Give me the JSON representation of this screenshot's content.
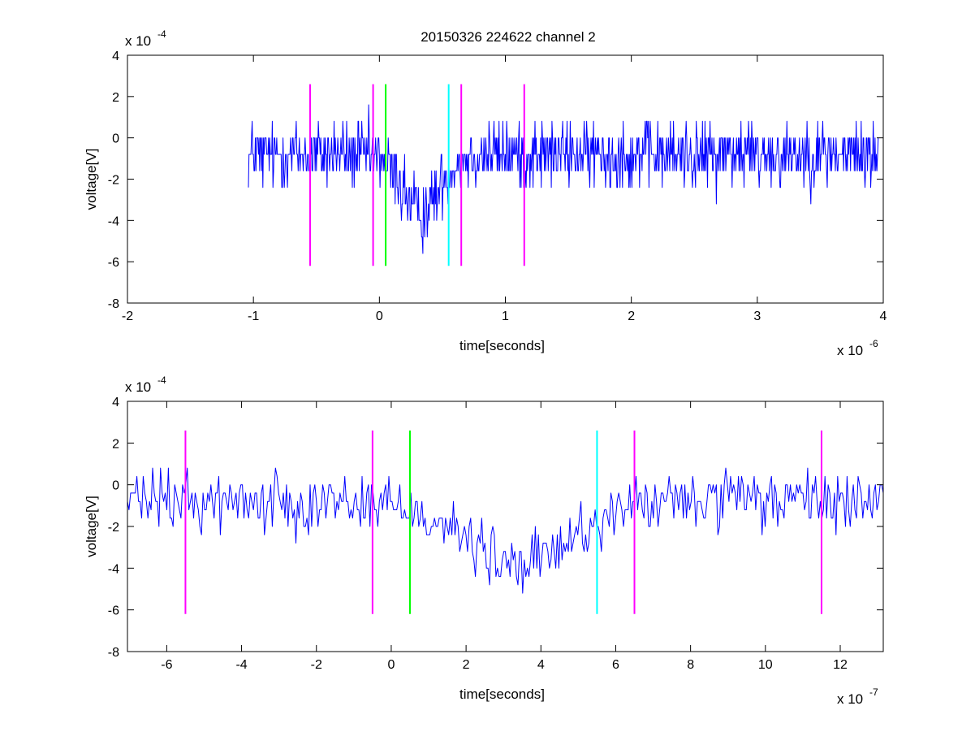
{
  "figure_title": "20150326 224622 channel 2",
  "colors": {
    "signal": "#0000ff",
    "marker_magenta": "#ff00ff",
    "marker_green": "#00ff00",
    "marker_cyan": "#00ffff"
  },
  "chart_data": [
    {
      "type": "line",
      "title": "20150326 224622 channel 2",
      "xlabel": "time[seconds]",
      "ylabel": "voltage[V]",
      "x_unit_scale": "x 10^-6",
      "x_exponent": "-6",
      "y_unit_scale": "x 10^-4",
      "y_exponent": "-4",
      "xlim": [
        -2e-06,
        4e-06
      ],
      "ylim": [
        -0.0008,
        0.0004
      ],
      "xticks": [
        -2e-06,
        -1e-06,
        0,
        1e-06,
        2e-06,
        3e-06,
        4e-06
      ],
      "xtick_labels": [
        "-2",
        "-1",
        "0",
        "1",
        "2",
        "3",
        "4"
      ],
      "yticks": [
        -0.0008,
        -0.0006,
        -0.0004,
        -0.0002,
        0,
        0.0002,
        0.0004
      ],
      "ytick_labels": [
        "-8",
        "-6",
        "-4",
        "-2",
        "0",
        "2",
        "4"
      ],
      "grid": false,
      "series": [
        {
          "kind": "noisy_signal",
          "color": "#0000ff",
          "x_start": -1.04e-06,
          "x_end": 3.96e-06,
          "baseline": -8e-05,
          "noise_amplitude": 0.00016,
          "dip_center": 3.3e-07,
          "dip_width": 2e-07,
          "dip_depth": -0.00028,
          "quantization": 8e-05
        }
      ],
      "markers": [
        {
          "x": -5.5e-07,
          "color": "#ff00ff",
          "y_range": [
            -0.00062,
            0.00026
          ]
        },
        {
          "x": -5e-08,
          "color": "#ff00ff",
          "y_range": [
            -0.00062,
            0.00026
          ]
        },
        {
          "x": 5e-08,
          "color": "#00ff00",
          "y_range": [
            -0.00062,
            0.00026
          ]
        },
        {
          "x": 5.5e-07,
          "color": "#00ffff",
          "y_range": [
            -0.00062,
            0.00026
          ]
        },
        {
          "x": 6.5e-07,
          "color": "#ff00ff",
          "y_range": [
            -0.00062,
            0.00026
          ]
        },
        {
          "x": 1.15e-06,
          "color": "#ff00ff",
          "y_range": [
            -0.00062,
            0.00026
          ]
        }
      ]
    },
    {
      "type": "line",
      "title": "",
      "xlabel": "time[seconds]",
      "ylabel": "voltage[V]",
      "x_unit_scale": "x 10^-7",
      "x_exponent": "-7",
      "y_unit_scale": "x 10^-4",
      "y_exponent": "-4",
      "xlim": [
        -7.05e-07,
        1.315e-06
      ],
      "ylim": [
        -0.0008,
        0.0004
      ],
      "xticks": [
        -6e-07,
        -4e-07,
        -2e-07,
        0,
        2e-07,
        4e-07,
        6e-07,
        8e-07,
        1e-06,
        1.2e-06
      ],
      "xtick_labels": [
        "-6",
        "-4",
        "-2",
        "0",
        "2",
        "4",
        "6",
        "8",
        "10",
        "12"
      ],
      "yticks": [
        -0.0008,
        -0.0006,
        -0.0004,
        -0.0002,
        0,
        0.0002,
        0.0004
      ],
      "ytick_labels": [
        "-8",
        "-6",
        "-4",
        "-2",
        "0",
        "2",
        "4"
      ],
      "grid": false,
      "series": [
        {
          "kind": "noisy_signal",
          "color": "#0000ff",
          "x_start": -7.05e-07,
          "x_end": 1.315e-06,
          "baseline": -8e-05,
          "noise_amplitude": 0.00014,
          "dip_center": 3.4e-07,
          "dip_width": 1.9e-07,
          "dip_depth": -0.00031,
          "quantization": 4e-05
        }
      ],
      "markers": [
        {
          "x": -5.5e-07,
          "color": "#ff00ff",
          "y_range": [
            -0.00062,
            0.00026
          ]
        },
        {
          "x": -5e-08,
          "color": "#ff00ff",
          "y_range": [
            -0.00062,
            0.00026
          ]
        },
        {
          "x": 5e-08,
          "color": "#00ff00",
          "y_range": [
            -0.00062,
            0.00026
          ]
        },
        {
          "x": 5.5e-07,
          "color": "#00ffff",
          "y_range": [
            -0.00062,
            0.00026
          ]
        },
        {
          "x": 6.5e-07,
          "color": "#ff00ff",
          "y_range": [
            -0.00062,
            0.00026
          ]
        },
        {
          "x": 1.15e-06,
          "color": "#ff00ff",
          "y_range": [
            -0.00062,
            0.00026
          ]
        }
      ]
    }
  ]
}
